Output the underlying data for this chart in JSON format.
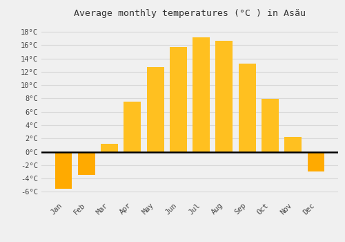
{
  "title": "Average monthly temperatures (°C ) in Asău",
  "months": [
    "Jan",
    "Feb",
    "Mar",
    "Apr",
    "May",
    "Jun",
    "Jul",
    "Aug",
    "Sep",
    "Oct",
    "Nov",
    "Dec"
  ],
  "values": [
    -5.5,
    -3.5,
    1.2,
    7.5,
    12.7,
    15.7,
    17.2,
    16.6,
    13.2,
    7.9,
    2.2,
    -3.0
  ],
  "bar_color_positive": "#FFC020",
  "bar_color_negative": "#FFAA00",
  "background_color": "#F0F0F0",
  "grid_color": "#D8D8D8",
  "ylim": [
    -7,
    19.5
  ],
  "yticks": [
    -6,
    -4,
    -2,
    0,
    2,
    4,
    6,
    8,
    10,
    12,
    14,
    16,
    18
  ],
  "title_fontsize": 9.5,
  "tick_fontsize": 7.5
}
